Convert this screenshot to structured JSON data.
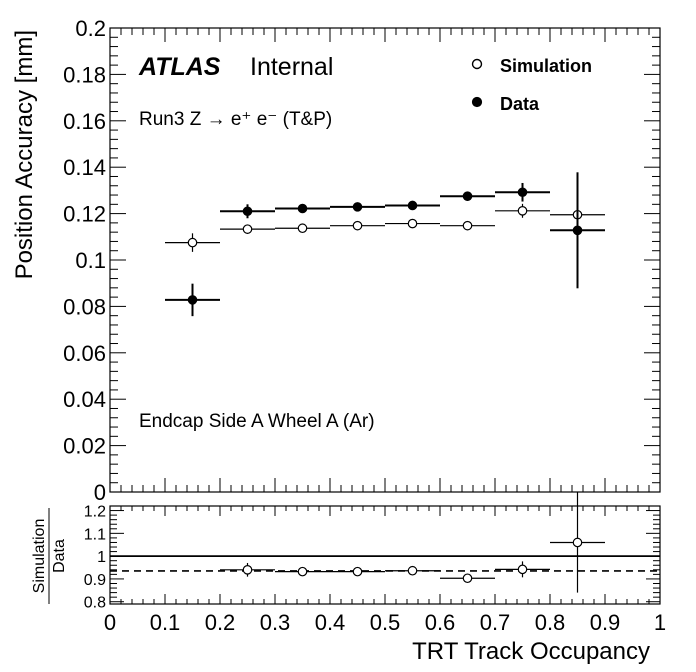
{
  "chart_data": [
    {
      "type": "scatter",
      "panel": "main",
      "ylabel": "Position Accuracy [mm]",
      "xlabel": "",
      "xlim": [
        0,
        1
      ],
      "ylim": [
        0,
        0.2
      ],
      "yticks": [
        "0",
        "0.02",
        "0.04",
        "0.06",
        "0.08",
        "0.1",
        "0.12",
        "0.14",
        "0.16",
        "0.18",
        "0.2"
      ],
      "ytick_values": [
        0,
        0.02,
        0.04,
        0.06,
        0.08,
        0.1,
        0.12,
        0.14,
        0.16,
        0.18,
        0.2
      ],
      "grid": false,
      "legend_position": "top-right",
      "annotations": {
        "atlas": "ATLAS",
        "internal": "Internal",
        "process": "Run3 Z → e⁺ e⁻ (T&P)",
        "region": "Endcap Side A Wheel A (Ar)"
      },
      "series": [
        {
          "name": "Simulation",
          "marker": "open-circle",
          "color": "#000000",
          "x": [
            0.15,
            0.25,
            0.35,
            0.45,
            0.55,
            0.65,
            0.75,
            0.85
          ],
          "y": [
            0.1075,
            0.1133,
            0.1137,
            0.1148,
            0.1157,
            0.1148,
            0.1212,
            0.1195
          ],
          "yerr": [
            0.004,
            0.002,
            0.0012,
            0.0012,
            0.0012,
            0.0012,
            0.003,
            0.008
          ],
          "xerr": 0.05
        },
        {
          "name": "Data",
          "marker": "filled-circle",
          "color": "#000000",
          "x": [
            0.15,
            0.25,
            0.35,
            0.45,
            0.55,
            0.65,
            0.75,
            0.85
          ],
          "y": [
            0.0828,
            0.121,
            0.1222,
            0.1229,
            0.1235,
            0.1275,
            0.1292,
            0.1128
          ],
          "yerr": [
            0.007,
            0.003,
            0.0015,
            0.0013,
            0.0015,
            0.002,
            0.004,
            0.025
          ],
          "xerr": 0.05
        }
      ]
    },
    {
      "type": "scatter",
      "panel": "ratio",
      "ylabel_num": "Simulation",
      "ylabel_den": "Data",
      "xlabel": "TRT Track Occupancy",
      "xlim": [
        0,
        1
      ],
      "ylim": [
        0.79,
        1.22
      ],
      "yticks": [
        "0.8",
        "0.9",
        "1",
        "1.1",
        "1.2"
      ],
      "ytick_values": [
        0.8,
        0.9,
        1.0,
        1.1,
        1.2
      ],
      "xticks": [
        "0",
        "0.1",
        "0.2",
        "0.3",
        "0.4",
        "0.5",
        "0.6",
        "0.7",
        "0.8",
        "0.9",
        "1"
      ],
      "xtick_values": [
        0,
        0.1,
        0.2,
        0.3,
        0.4,
        0.5,
        0.6,
        0.7,
        0.8,
        0.9,
        1
      ],
      "reference_lines": [
        {
          "y": 1.0,
          "style": "solid"
        },
        {
          "y": 0.935,
          "style": "dashed"
        }
      ],
      "series": [
        {
          "name": "Simulation/Data",
          "marker": "open-circle",
          "color": "#000000",
          "x": [
            0.25,
            0.35,
            0.45,
            0.55,
            0.65,
            0.75,
            0.85
          ],
          "y": [
            0.94,
            0.932,
            0.932,
            0.936,
            0.903,
            0.942,
            1.06
          ],
          "yerr": [
            0.03,
            0.008,
            0.008,
            0.008,
            0.012,
            0.035,
            0.22
          ],
          "xerr": 0.05
        }
      ]
    }
  ]
}
